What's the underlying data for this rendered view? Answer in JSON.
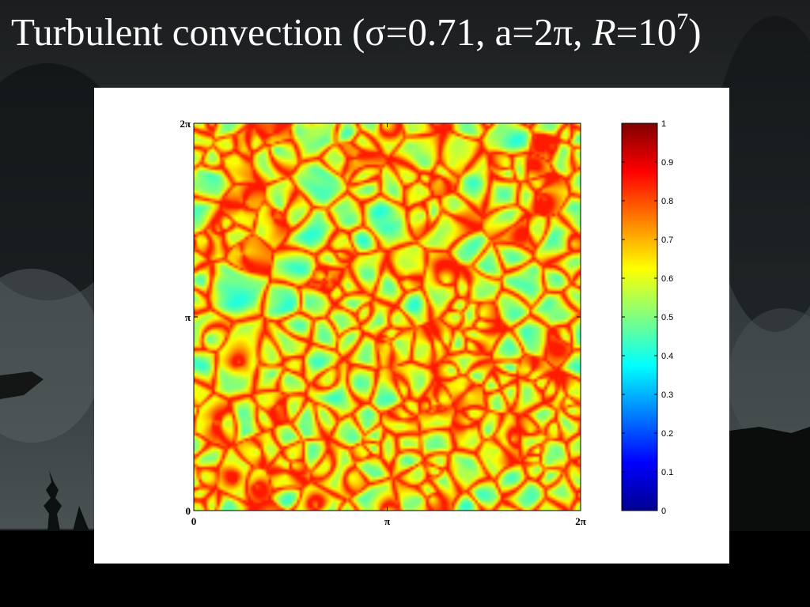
{
  "slide": {
    "title_prefix": "Turbulent convection (σ=0.71, a=2π, ",
    "title_var": "R",
    "title_eq": "=10",
    "title_exp": "7",
    "title_suffix": ")"
  },
  "chart_data": {
    "type": "heatmap",
    "title": "",
    "xlabel": "",
    "ylabel": "",
    "xlim": [
      0,
      6.2832
    ],
    "ylim": [
      0,
      6.2832
    ],
    "x_ticks": [
      "0",
      "π",
      "2π"
    ],
    "y_ticks": [
      "0",
      "π",
      "2π"
    ],
    "colorbar": {
      "min": 0,
      "max": 1,
      "ticks": [
        "0",
        "0.1",
        "0.2",
        "0.3",
        "0.4",
        "0.5",
        "0.6",
        "0.7",
        "0.8",
        "0.9",
        "1"
      ],
      "colormap": "jet",
      "colors": [
        "#00008f",
        "#0000ff",
        "#0080ff",
        "#00ffff",
        "#80ff80",
        "#ffff00",
        "#ff8000",
        "#ff0000",
        "#800000"
      ]
    },
    "value_range_shown": [
      0.35,
      0.85
    ],
    "grid": false,
    "legend": "colorbar-right"
  }
}
